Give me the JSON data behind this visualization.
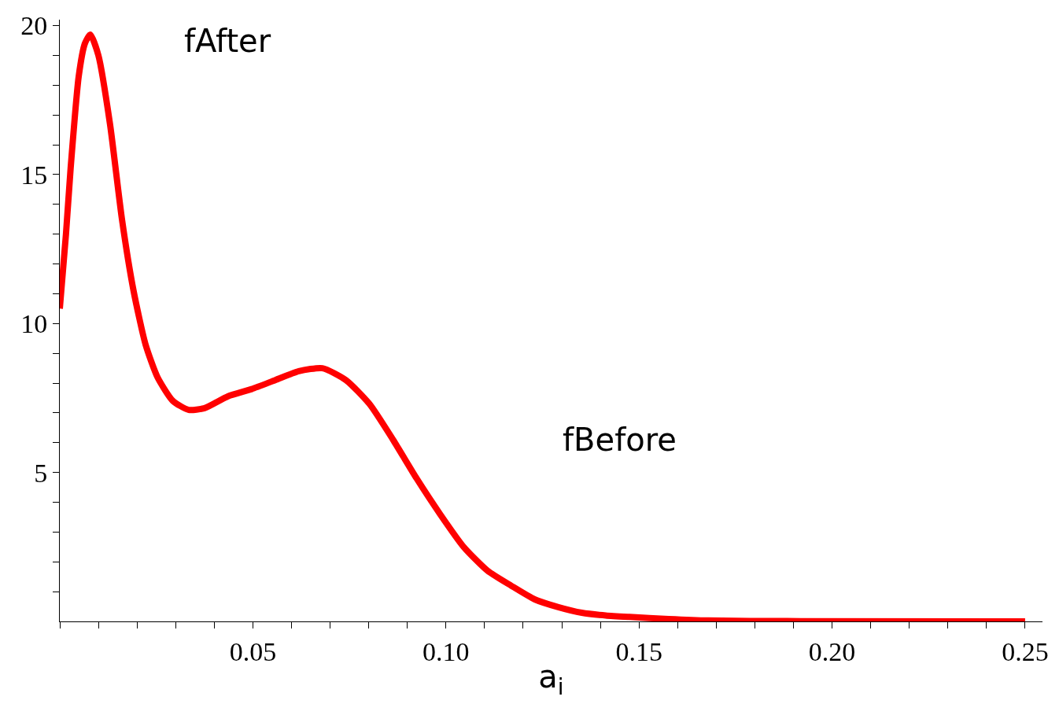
{
  "chart_data": {
    "type": "line",
    "xlabel": "a$_{i}$",
    "annotations": [
      "fAfter",
      "fBefore"
    ],
    "x": [
      0,
      0.0016,
      0.0028,
      0.0049,
      0.0065,
      0.0079,
      0.01,
      0.013,
      0.0161,
      0.0191,
      0.0222,
      0.0253,
      0.0293,
      0.0334,
      0.0375,
      0.0436,
      0.0497,
      0.0558,
      0.0619,
      0.068,
      0.0741,
      0.0802,
      0.0863,
      0.0924,
      0.0985,
      0.1046,
      0.1108,
      0.1169,
      0.123,
      0.1291,
      0.1352,
      0.1414,
      0.1475,
      0.1577,
      0.1679,
      0.1883,
      0.25
    ],
    "series": [
      {
        "color": "#ff0000",
        "values": [
          10.5,
          13.0,
          15.2,
          18.3,
          19.4,
          19.7,
          19.0,
          16.7,
          13.5,
          11.1,
          9.3,
          8.2,
          7.4,
          7.1,
          7.16,
          7.56,
          7.8,
          8.1,
          8.4,
          8.5,
          8.1,
          7.3,
          6.1,
          4.8,
          3.6,
          2.5,
          1.7,
          1.2,
          0.74,
          0.48,
          0.29,
          0.2,
          0.15,
          0.08,
          0.03,
          0.01,
          0
        ]
      }
    ],
    "xlim": [
      0,
      0.2545
    ],
    "ylim": [
      0,
      20.2
    ],
    "xticks": [
      {
        "value": 0,
        "label": null
      },
      {
        "value": 0.01,
        "label": null
      },
      {
        "value": 0.02,
        "label": null
      },
      {
        "value": 0.03,
        "label": null
      },
      {
        "value": 0.04,
        "label": null
      },
      {
        "value": 0.05,
        "label": "0.05"
      },
      {
        "value": 0.06,
        "label": null
      },
      {
        "value": 0.07,
        "label": null
      },
      {
        "value": 0.08,
        "label": null
      },
      {
        "value": 0.09,
        "label": null
      },
      {
        "value": 0.1,
        "label": "0.10"
      },
      {
        "value": 0.11,
        "label": null
      },
      {
        "value": 0.12,
        "label": null
      },
      {
        "value": 0.13,
        "label": null
      },
      {
        "value": 0.14,
        "label": null
      },
      {
        "value": 0.15,
        "label": "0.15"
      },
      {
        "value": 0.16,
        "label": null
      },
      {
        "value": 0.17,
        "label": null
      },
      {
        "value": 0.18,
        "label": null
      },
      {
        "value": 0.19,
        "label": null
      },
      {
        "value": 0.2,
        "label": "0.20"
      },
      {
        "value": 0.21,
        "label": null
      },
      {
        "value": 0.22,
        "label": null
      },
      {
        "value": 0.23,
        "label": null
      },
      {
        "value": 0.24,
        "label": null
      },
      {
        "value": 0.25,
        "label": "0.25"
      }
    ],
    "yticks": [
      {
        "value": 1,
        "label": null
      },
      {
        "value": 2,
        "label": null
      },
      {
        "value": 3,
        "label": null
      },
      {
        "value": 4,
        "label": null
      },
      5,
      {
        "value": 6,
        "label": null
      },
      {
        "value": 7,
        "label": null
      },
      {
        "value": 8,
        "label": null
      },
      {
        "value": 9,
        "label": null
      },
      10,
      {
        "value": 11,
        "label": null
      },
      {
        "value": 12,
        "label": null
      },
      {
        "value": 13,
        "label": null
      },
      {
        "value": 14,
        "label": null
      },
      15,
      {
        "value": 16,
        "label": null
      },
      {
        "value": 17,
        "label": null
      },
      {
        "value": 18,
        "label": null
      },
      {
        "value": 19,
        "label": null
      },
      20
    ],
    "grid": false,
    "marker": "none",
    "line_style": "solid"
  }
}
